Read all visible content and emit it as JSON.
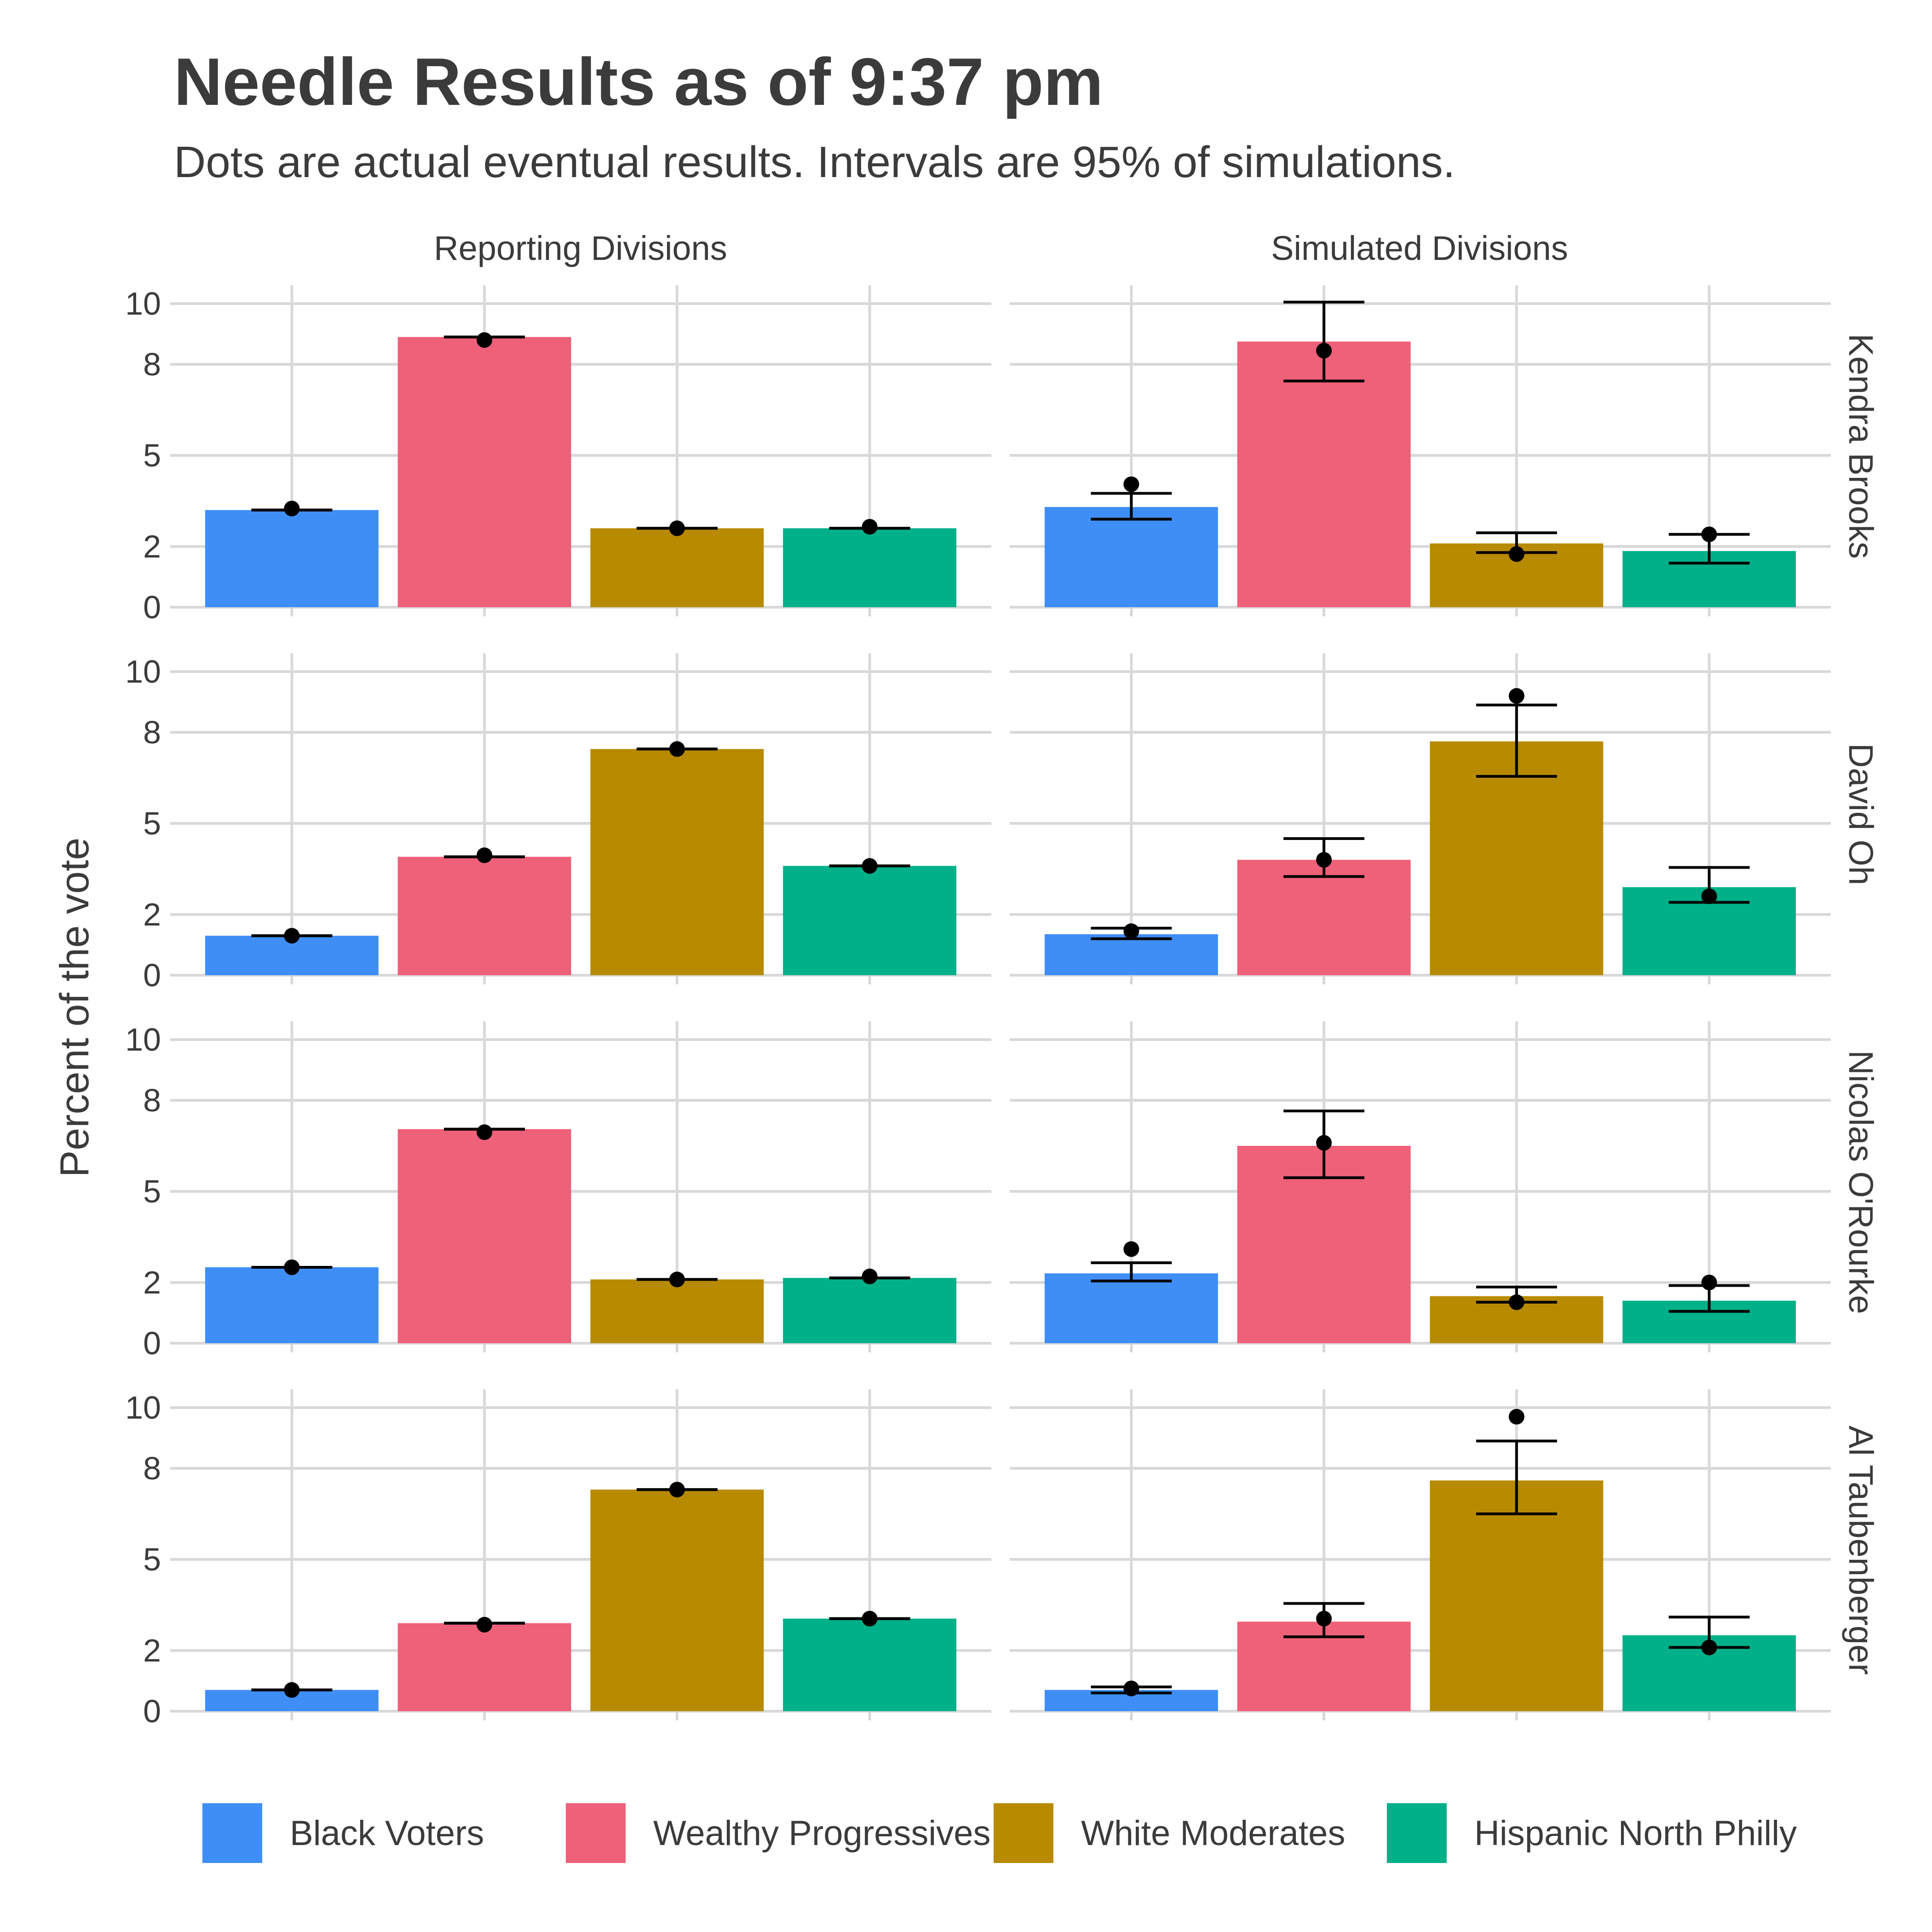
{
  "chart_data": {
    "type": "bar",
    "title": "Needle Results as of 9:37 pm",
    "subtitle": "Dots are actual eventual results. Intervals are 95% of simulations.",
    "ylabel": "Percent of the vote",
    "ylim": [
      0,
      10
    ],
    "y_ticks": [
      "0",
      "2",
      "5",
      "8",
      "10"
    ],
    "grid": true,
    "legend_position": "bottom",
    "columns": [
      "Reporting Divisions",
      "Simulated Divisions"
    ],
    "categories": [
      "Black Voters",
      "Wealthy Progressives",
      "White Moderates",
      "Hispanic North Philly"
    ],
    "colors": {
      "Black Voters": "#3f8ef5",
      "Wealthy Progressives": "#ef6079",
      "White Moderates": "#b88a00",
      "Hispanic North Philly": "#00b089"
    },
    "panels": [
      {
        "candidate": "Kendra Brooks",
        "reporting": {
          "values": [
            3.2,
            8.9,
            2.6,
            2.6
          ],
          "lower": [
            3.2,
            8.9,
            2.6,
            2.6
          ],
          "upper": [
            3.2,
            8.9,
            2.6,
            2.6
          ],
          "actual": [
            3.25,
            8.8,
            2.6,
            2.65
          ]
        },
        "simulated": {
          "values": [
            3.3,
            8.75,
            2.1,
            1.85
          ],
          "lower": [
            2.9,
            7.45,
            1.8,
            1.45
          ],
          "upper": [
            3.75,
            10.05,
            2.45,
            2.4
          ],
          "actual": [
            4.05,
            8.45,
            1.75,
            2.4
          ]
        }
      },
      {
        "candidate": "David Oh",
        "reporting": {
          "values": [
            1.3,
            3.9,
            7.45,
            3.6
          ],
          "lower": [
            1.3,
            3.9,
            7.45,
            3.6
          ],
          "upper": [
            1.3,
            3.9,
            7.45,
            3.6
          ],
          "actual": [
            1.3,
            3.95,
            7.45,
            3.6
          ]
        },
        "simulated": {
          "values": [
            1.35,
            3.8,
            7.7,
            2.9
          ],
          "lower": [
            1.2,
            3.25,
            6.55,
            2.4
          ],
          "upper": [
            1.55,
            4.5,
            8.9,
            3.55
          ],
          "actual": [
            1.45,
            3.8,
            9.2,
            2.6
          ]
        }
      },
      {
        "candidate": "Nicolas O'Rourke",
        "reporting": {
          "values": [
            2.5,
            7.05,
            2.1,
            2.15
          ],
          "lower": [
            2.5,
            7.05,
            2.1,
            2.15
          ],
          "upper": [
            2.5,
            7.05,
            2.1,
            2.15
          ],
          "actual": [
            2.5,
            6.95,
            2.1,
            2.2
          ]
        },
        "simulated": {
          "values": [
            2.3,
            6.5,
            1.55,
            1.4
          ],
          "lower": [
            2.05,
            5.45,
            1.35,
            1.05
          ],
          "upper": [
            2.65,
            7.65,
            1.85,
            1.9
          ],
          "actual": [
            3.1,
            6.6,
            1.35,
            2.0
          ]
        }
      },
      {
        "candidate": "Al Taubenberger",
        "reporting": {
          "values": [
            0.7,
            2.9,
            7.3,
            3.05
          ],
          "lower": [
            0.7,
            2.9,
            7.3,
            3.05
          ],
          "upper": [
            0.7,
            2.9,
            7.3,
            3.05
          ],
          "actual": [
            0.7,
            2.85,
            7.3,
            3.05
          ]
        },
        "simulated": {
          "values": [
            0.7,
            2.95,
            7.6,
            2.5
          ],
          "lower": [
            0.6,
            2.45,
            6.5,
            2.1
          ],
          "upper": [
            0.8,
            3.55,
            8.9,
            3.1
          ],
          "actual": [
            0.75,
            3.05,
            9.7,
            2.1
          ]
        }
      }
    ]
  }
}
